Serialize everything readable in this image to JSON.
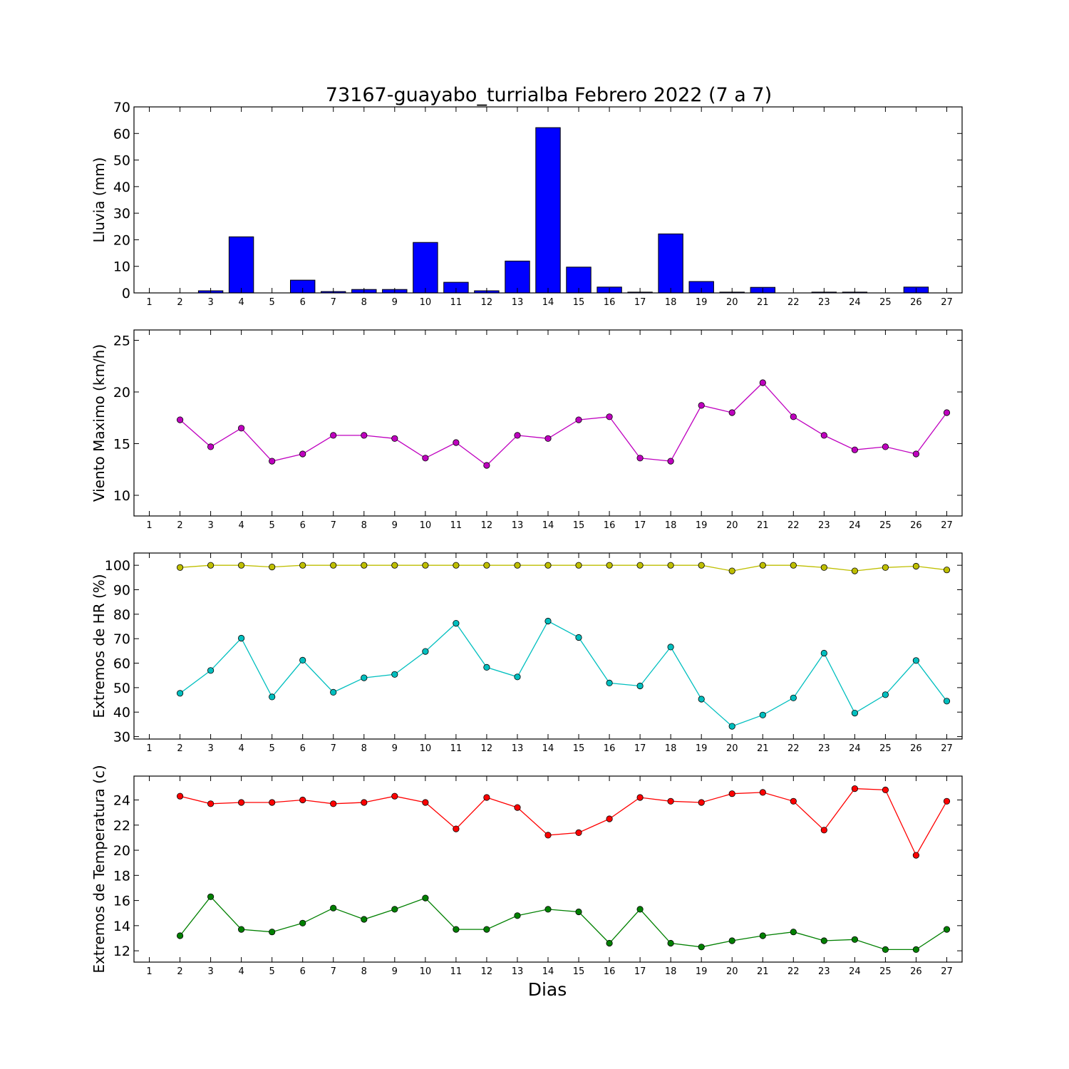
{
  "title": "73167-guayabo_turrialba Febrero 2022  (7 a 7)",
  "xlabel": "Dias",
  "chart_data": [
    {
      "type": "bar",
      "ylabel": "Lluvia (mm)",
      "ylim": [
        0,
        70
      ],
      "yticks": [
        0,
        10,
        20,
        30,
        40,
        50,
        60,
        70
      ],
      "x": [
        1,
        2,
        3,
        4,
        5,
        6,
        7,
        8,
        9,
        10,
        11,
        12,
        13,
        14,
        15,
        16,
        17,
        18,
        19,
        20,
        21,
        22,
        23,
        24,
        25,
        26,
        27
      ],
      "xticks": [
        "1",
        "2",
        "3",
        "4",
        "5",
        "6",
        "7",
        "8",
        "9",
        "10",
        "11",
        "12",
        "13",
        "14",
        "15",
        "16",
        "17",
        "18",
        "19",
        "20",
        "21",
        "22",
        "23",
        "24",
        "25",
        "26",
        "27"
      ],
      "series": [
        {
          "color": "#0000ff",
          "values": [
            0,
            0,
            0.8,
            21.1,
            0,
            4.8,
            0.5,
            1.3,
            1.3,
            19.0,
            4.0,
            0.8,
            12.0,
            62.2,
            9.7,
            2.2,
            0.3,
            22.2,
            4.3,
            0.3,
            2.1,
            0,
            0.3,
            0.3,
            0,
            2.2,
            0
          ]
        }
      ]
    },
    {
      "type": "line",
      "ylabel": "Viento Maximo (km/h)",
      "ylim": [
        8,
        26
      ],
      "yticks": [
        10,
        15,
        20,
        25
      ],
      "x": [
        2,
        3,
        4,
        5,
        6,
        7,
        8,
        9,
        10,
        11,
        12,
        13,
        14,
        15,
        16,
        17,
        18,
        19,
        20,
        21,
        22,
        23,
        24,
        25,
        26,
        27
      ],
      "xticks": [
        "1",
        "2",
        "3",
        "4",
        "5",
        "6",
        "7",
        "8",
        "9",
        "10",
        "11",
        "12",
        "13",
        "14",
        "15",
        "16",
        "17",
        "18",
        "19",
        "20",
        "21",
        "22",
        "23",
        "24",
        "25",
        "26",
        "27"
      ],
      "series": [
        {
          "color": "#bf00bf",
          "values": [
            17.3,
            14.7,
            16.5,
            13.3,
            14.0,
            15.8,
            15.8,
            15.5,
            13.6,
            15.1,
            12.9,
            15.8,
            15.5,
            17.3,
            17.6,
            13.6,
            13.3,
            18.7,
            18.0,
            20.9,
            17.6,
            15.8,
            14.4,
            14.7,
            14.0,
            18.0
          ]
        }
      ]
    },
    {
      "type": "line",
      "ylabel": "Extremos de HR (%)",
      "ylim": [
        29,
        105
      ],
      "yticks": [
        30,
        40,
        50,
        60,
        70,
        80,
        90,
        100
      ],
      "x": [
        2,
        3,
        4,
        5,
        6,
        7,
        8,
        9,
        10,
        11,
        12,
        13,
        14,
        15,
        16,
        17,
        18,
        19,
        20,
        21,
        22,
        23,
        24,
        25,
        26,
        27
      ],
      "xticks": [
        "1",
        "2",
        "3",
        "4",
        "5",
        "6",
        "7",
        "8",
        "9",
        "10",
        "11",
        "12",
        "13",
        "14",
        "15",
        "16",
        "17",
        "18",
        "19",
        "20",
        "21",
        "22",
        "23",
        "24",
        "25",
        "26",
        "27"
      ],
      "series": [
        {
          "color": "#bfbf00",
          "values": [
            99.1,
            100,
            100,
            99.3,
            100,
            100,
            100,
            100,
            100,
            100,
            100,
            100,
            100,
            100,
            100,
            100,
            100,
            100,
            97.7,
            100,
            100,
            99.1,
            97.7,
            99.1,
            99.6,
            98.1
          ]
        },
        {
          "color": "#00bfbf",
          "values": [
            47.7,
            57.0,
            70.2,
            46.2,
            61.2,
            48.1,
            54.0,
            55.4,
            64.8,
            76.3,
            58.3,
            54.4,
            77.2,
            70.5,
            51.9,
            50.7,
            66.6,
            45.3,
            34.2,
            38.8,
            45.8,
            64.1,
            39.6,
            47.1,
            61.1,
            44.5
          ]
        }
      ]
    },
    {
      "type": "line",
      "ylabel": "Extremos de Temperatura (c)",
      "ylim": [
        11.1,
        25.9
      ],
      "yticks": [
        12,
        14,
        16,
        18,
        20,
        22,
        24
      ],
      "x": [
        2,
        3,
        4,
        5,
        6,
        7,
        8,
        9,
        10,
        11,
        12,
        13,
        14,
        15,
        16,
        17,
        18,
        19,
        20,
        21,
        22,
        23,
        24,
        25,
        26,
        27
      ],
      "xticks": [
        "1",
        "2",
        "3",
        "4",
        "5",
        "6",
        "7",
        "8",
        "9",
        "10",
        "11",
        "12",
        "13",
        "14",
        "15",
        "16",
        "17",
        "18",
        "19",
        "20",
        "21",
        "22",
        "23",
        "24",
        "25",
        "26",
        "27"
      ],
      "series": [
        {
          "color": "#ff0000",
          "values": [
            24.3,
            23.7,
            23.8,
            23.8,
            24.0,
            23.7,
            23.8,
            24.3,
            23.8,
            21.7,
            24.2,
            23.4,
            21.2,
            21.4,
            22.5,
            24.2,
            23.9,
            23.8,
            24.5,
            24.6,
            23.9,
            21.6,
            24.9,
            24.8,
            19.6,
            23.9
          ]
        },
        {
          "color": "#008000",
          "values": [
            13.2,
            16.3,
            13.7,
            13.5,
            14.2,
            15.4,
            14.5,
            15.3,
            16.2,
            13.7,
            13.7,
            14.8,
            15.3,
            15.1,
            12.6,
            15.3,
            12.6,
            12.3,
            12.8,
            13.2,
            13.5,
            12.8,
            12.9,
            12.1,
            12.1,
            13.7
          ]
        }
      ]
    }
  ]
}
